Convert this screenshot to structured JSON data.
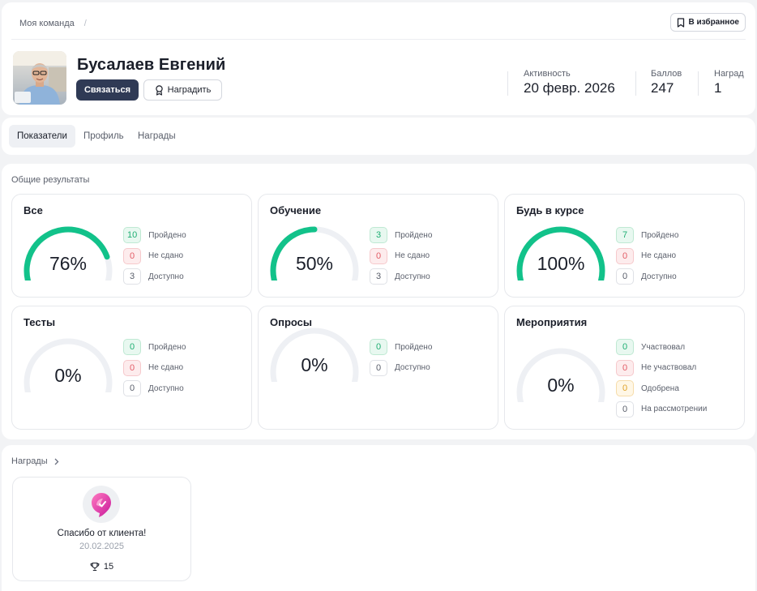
{
  "header": {
    "breadcrumb": "Моя команда",
    "breadcrumb_sep": "/",
    "favorite_label": "В избранное",
    "name": "Бусалаев Евгений",
    "contact_label": "Связаться",
    "reward_label": "Наградить",
    "stats": [
      {
        "label": "Активность",
        "value": "20 февр. 2026"
      },
      {
        "label": "Баллов",
        "value": "247"
      },
      {
        "label": "Наград",
        "value": "1"
      }
    ]
  },
  "tabs": [
    {
      "label": "Показатели",
      "active": true
    },
    {
      "label": "Профиль",
      "active": false
    },
    {
      "label": "Награды",
      "active": false
    }
  ],
  "results": {
    "title": "Общие результаты",
    "cards": [
      {
        "title": "Все",
        "percent": 76,
        "percent_label": "76%",
        "rows": [
          {
            "count": "10",
            "label": "Пройдено",
            "color": "green"
          },
          {
            "count": "0",
            "label": "Не сдано",
            "color": "red"
          },
          {
            "count": "3",
            "label": "Доступно",
            "color": "gray"
          }
        ]
      },
      {
        "title": "Обучение",
        "percent": 50,
        "percent_label": "50%",
        "rows": [
          {
            "count": "3",
            "label": "Пройдено",
            "color": "green"
          },
          {
            "count": "0",
            "label": "Не сдано",
            "color": "red"
          },
          {
            "count": "3",
            "label": "Доступно",
            "color": "gray"
          }
        ]
      },
      {
        "title": "Будь в курсе",
        "percent": 100,
        "percent_label": "100%",
        "rows": [
          {
            "count": "7",
            "label": "Пройдено",
            "color": "green"
          },
          {
            "count": "0",
            "label": "Не сдано",
            "color": "red"
          },
          {
            "count": "0",
            "label": "Доступно",
            "color": "gray"
          }
        ]
      },
      {
        "title": "Тесты",
        "percent": 0,
        "percent_label": "0%",
        "rows": [
          {
            "count": "0",
            "label": "Пройдено",
            "color": "green"
          },
          {
            "count": "0",
            "label": "Не сдано",
            "color": "red"
          },
          {
            "count": "0",
            "label": "Доступно",
            "color": "gray"
          }
        ]
      },
      {
        "title": "Опросы",
        "percent": 0,
        "percent_label": "0%",
        "rows": [
          {
            "count": "0",
            "label": "Пройдено",
            "color": "green"
          },
          {
            "count": "0",
            "label": "Доступно",
            "color": "gray"
          }
        ]
      },
      {
        "title": "Мероприятия",
        "percent": 0,
        "percent_label": "0%",
        "rows": [
          {
            "count": "0",
            "label": "Участвовал",
            "color": "green"
          },
          {
            "count": "0",
            "label": "Не участвовал",
            "color": "red"
          },
          {
            "count": "0",
            "label": "Одобрена",
            "color": "yellow"
          },
          {
            "count": "0",
            "label": "На рассмотрении",
            "color": "gray"
          }
        ]
      }
    ]
  },
  "awards": {
    "title": "Награды",
    "items": [
      {
        "name": "Спасибо от клиента!",
        "date": "20.02.2025",
        "points": "15"
      }
    ]
  },
  "colors": {
    "accent": "#12c28a",
    "gauge_track": "#eef0f4",
    "primary_button": "#2f3a55"
  },
  "icons": [
    "bookmark-icon",
    "award-ribbon-icon",
    "chevron-right-icon",
    "trophy-icon",
    "award-badge-icon"
  ]
}
